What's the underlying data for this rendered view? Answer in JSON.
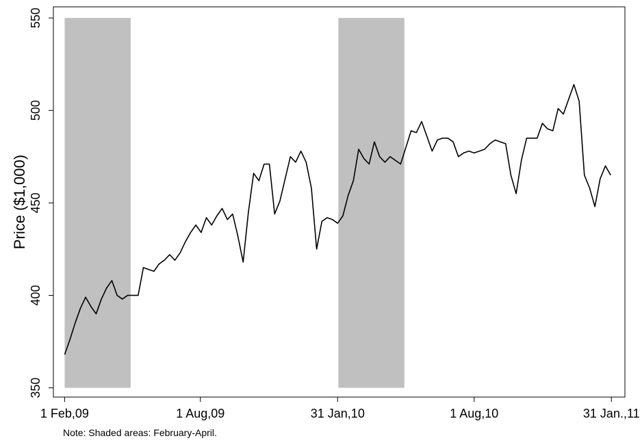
{
  "chart_data": {
    "type": "line",
    "y_label": "Price ($1,000)",
    "note": "Note: Shaded areas: February-April.",
    "color": "#000000",
    "shade_color": "#c0c0c0",
    "shaded": [
      {
        "start": "2009-02-01",
        "end": "2009-04-30"
      },
      {
        "start": "2010-02-01",
        "end": "2010-04-30"
      }
    ],
    "x": [
      "2009-02-01",
      "2009-02-08",
      "2009-02-15",
      "2009-02-22",
      "2009-03-01",
      "2009-03-08",
      "2009-03-15",
      "2009-03-22",
      "2009-03-29",
      "2009-04-05",
      "2009-04-12",
      "2009-04-19",
      "2009-04-26",
      "2009-05-03",
      "2009-05-10",
      "2009-05-17",
      "2009-05-24",
      "2009-05-31",
      "2009-06-07",
      "2009-06-14",
      "2009-06-21",
      "2009-06-28",
      "2009-07-05",
      "2009-07-12",
      "2009-07-19",
      "2009-07-26",
      "2009-08-02",
      "2009-08-09",
      "2009-08-16",
      "2009-08-23",
      "2009-08-30",
      "2009-09-06",
      "2009-09-13",
      "2009-09-20",
      "2009-09-27",
      "2009-10-04",
      "2009-10-11",
      "2009-10-18",
      "2009-10-25",
      "2009-11-01",
      "2009-11-08",
      "2009-11-15",
      "2009-11-22",
      "2009-11-29",
      "2009-12-06",
      "2009-12-13",
      "2009-12-20",
      "2009-12-27",
      "2010-01-03",
      "2010-01-10",
      "2010-01-17",
      "2010-01-24",
      "2010-01-31",
      "2010-02-07",
      "2010-02-14",
      "2010-02-21",
      "2010-02-28",
      "2010-03-07",
      "2010-03-14",
      "2010-03-21",
      "2010-03-28",
      "2010-04-04",
      "2010-04-11",
      "2010-04-18",
      "2010-04-25",
      "2010-05-02",
      "2010-05-09",
      "2010-05-16",
      "2010-05-23",
      "2010-05-30",
      "2010-06-06",
      "2010-06-13",
      "2010-06-20",
      "2010-06-27",
      "2010-07-04",
      "2010-07-11",
      "2010-07-18",
      "2010-07-25",
      "2010-08-01",
      "2010-08-08",
      "2010-08-15",
      "2010-08-22",
      "2010-08-29",
      "2010-09-05",
      "2010-09-12",
      "2010-09-19",
      "2010-09-26",
      "2010-10-03",
      "2010-10-10",
      "2010-10-17",
      "2010-10-24",
      "2010-10-31",
      "2010-11-07",
      "2010-11-14",
      "2010-11-21",
      "2010-11-28",
      "2010-12-05",
      "2010-12-12",
      "2010-12-19",
      "2010-12-26",
      "2011-01-02",
      "2011-01-09",
      "2011-01-16",
      "2011-01-23",
      "2011-01-30"
    ],
    "values": [
      368,
      376,
      385,
      393,
      399,
      394,
      390,
      398,
      404,
      408,
      400,
      398,
      400,
      400,
      400,
      415,
      414,
      413,
      417,
      419,
      422,
      419,
      423,
      429,
      434,
      438,
      434,
      442,
      438,
      443,
      447,
      441,
      444,
      432,
      418,
      445,
      466,
      462,
      471,
      471,
      444,
      451,
      463,
      475,
      472,
      478,
      472,
      458,
      425,
      440,
      442,
      441,
      439,
      443,
      454,
      462,
      479,
      474,
      471,
      483,
      475,
      472,
      475,
      473,
      471,
      480,
      489,
      488,
      494,
      486,
      478,
      484,
      485,
      485,
      483,
      475,
      477,
      478,
      477,
      478,
      479,
      482,
      484,
      483,
      482,
      465,
      455,
      473,
      485,
      485,
      485,
      493,
      490,
      489,
      501,
      498,
      506,
      514,
      505,
      465,
      458,
      448,
      463,
      470,
      465
    ],
    "xlim": [
      "2009-01-17",
      "2011-02-18"
    ],
    "xticks": [
      {
        "value": "2009-02-01",
        "label": "1 Feb,09"
      },
      {
        "value": "2009-08-01",
        "label": "1 Aug,09"
      },
      {
        "value": "2010-01-31",
        "label": "31 Jan,10"
      },
      {
        "value": "2010-08-01",
        "label": "1 Aug,10"
      },
      {
        "value": "2011-01-31",
        "label": "31 Jan.,11"
      }
    ],
    "ylim": [
      345,
      556
    ],
    "yticks": [
      350,
      400,
      450,
      500,
      550
    ]
  }
}
